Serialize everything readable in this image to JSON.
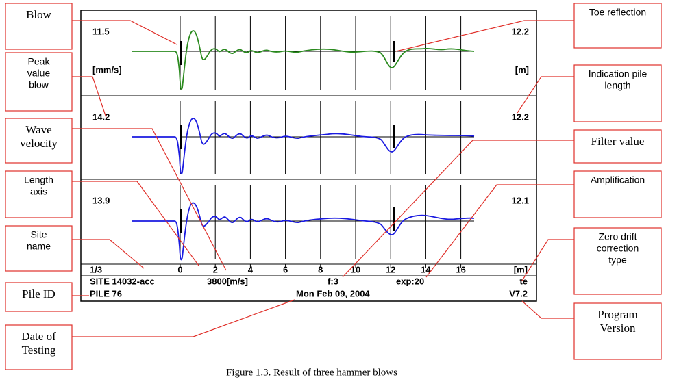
{
  "figure": {
    "panels": [
      {
        "peak": "11.5",
        "length": "12.2"
      },
      {
        "peak": "14.2",
        "length": "12.2"
      },
      {
        "peak": "13.9",
        "length": "12.1"
      }
    ],
    "unit_left": "[mm/s]",
    "unit_right": "[m]",
    "axis": {
      "page": "1/3",
      "ticks": [
        "0",
        "2",
        "4",
        "6",
        "8",
        "10",
        "12",
        "14",
        "16"
      ],
      "unit": "[m]"
    },
    "info": {
      "site": "SITE 14032-acc",
      "wave_speed": "3800[m/s]",
      "filter": "f:3",
      "exp": "exp:20",
      "drift": "te",
      "pile": "PILE 76",
      "date": "Mon Feb 09, 2004",
      "version": "V7.2"
    }
  },
  "callouts": {
    "left": [
      {
        "lines": [
          "Blow"
        ]
      },
      {
        "lines": [
          "Peak",
          "value",
          "blow"
        ]
      },
      {
        "lines": [
          "Wave",
          "velocity"
        ]
      },
      {
        "lines": [
          "Length",
          "axis"
        ]
      },
      {
        "lines": [
          "Site",
          "name"
        ]
      },
      {
        "lines": [
          "Pile ID"
        ]
      },
      {
        "lines": [
          "Date of",
          "Testing"
        ]
      }
    ],
    "right": [
      {
        "lines": [
          "Toe reflection"
        ]
      },
      {
        "lines": [
          "Indication pile",
          "length"
        ]
      },
      {
        "lines": [
          "Filter value"
        ]
      },
      {
        "lines": [
          "Amplification"
        ]
      },
      {
        "lines": [
          "Zero drift",
          "correction",
          "type"
        ]
      },
      {
        "lines": [
          "Program",
          "Version"
        ]
      }
    ]
  },
  "caption": "Figure 1.3. Result of three hammer blows"
}
